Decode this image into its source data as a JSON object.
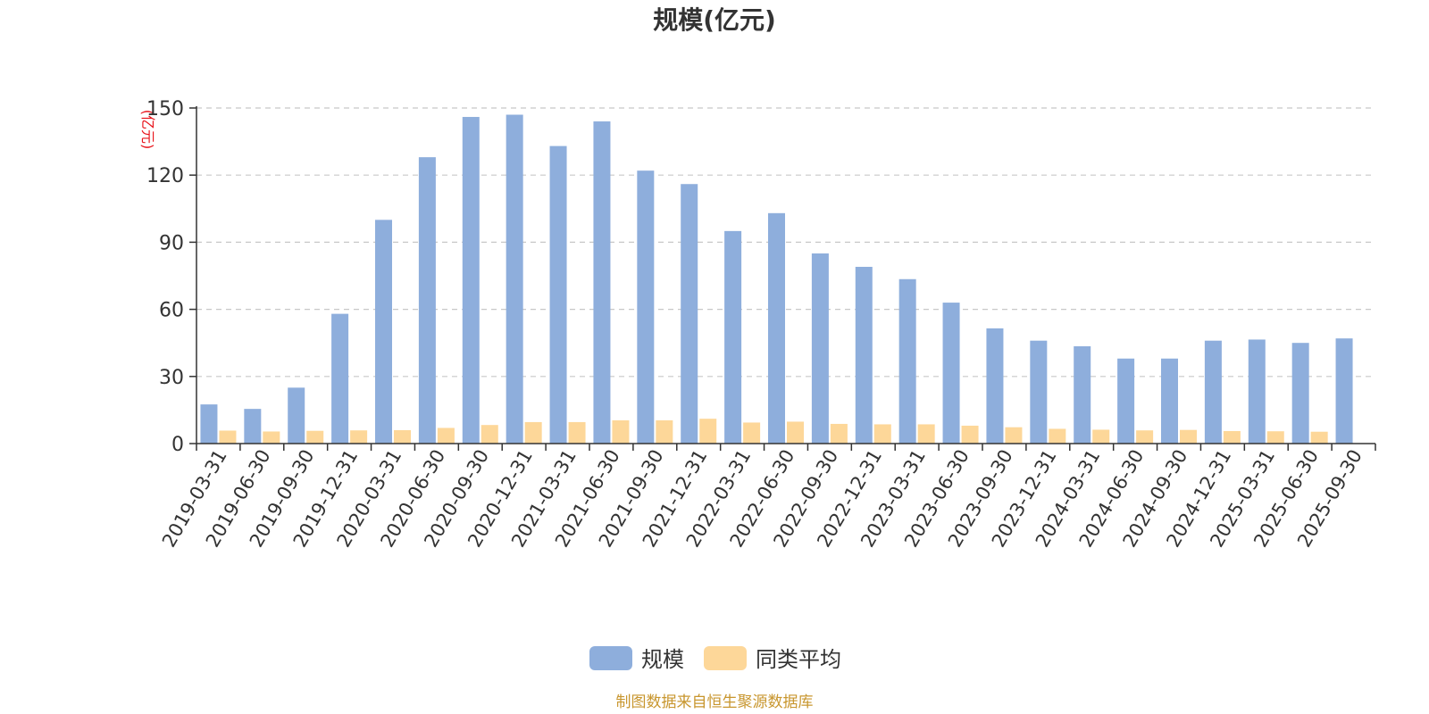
{
  "chart_data": {
    "type": "bar",
    "title": "规模(亿元)",
    "ylabel": "(亿元)",
    "ylim": [
      0,
      150
    ],
    "yticks": [
      0,
      30,
      60,
      90,
      120,
      150
    ],
    "grid": true,
    "legend_position": "bottom",
    "categories": [
      "2019-03-31",
      "2019-06-30",
      "2019-09-30",
      "2019-12-31",
      "2020-03-31",
      "2020-06-30",
      "2020-09-30",
      "2020-12-31",
      "2021-03-31",
      "2021-06-30",
      "2021-09-30",
      "2021-12-31",
      "2022-03-31",
      "2022-06-30",
      "2022-09-30",
      "2022-12-31",
      "2023-03-31",
      "2023-06-30",
      "2023-09-30",
      "2023-12-31",
      "2024-03-31",
      "2024-06-30",
      "2024-09-30",
      "2024-12-31",
      "2025-03-31",
      "2025-06-30",
      "2025-09-30"
    ],
    "series": [
      {
        "name": "规模",
        "color": "#8eaedc",
        "values": [
          17.5,
          15.5,
          25,
          58,
          100,
          128,
          146,
          147,
          133,
          144,
          122,
          116,
          95,
          103,
          85,
          79,
          73.5,
          63,
          51.5,
          46,
          43.5,
          38,
          38,
          46,
          46.5,
          45,
          47
        ]
      },
      {
        "name": "同类平均",
        "color": "#fdd799",
        "values": [
          5.8,
          5.4,
          5.7,
          5.9,
          6,
          7,
          8.3,
          9.6,
          9.6,
          10.4,
          10.4,
          11.1,
          9.4,
          9.8,
          8.8,
          8.6,
          8.6,
          8,
          7.3,
          6.6,
          6.2,
          5.9,
          6.1,
          5.6,
          5.5,
          5.3,
          null
        ]
      }
    ]
  },
  "footer": {
    "source": "制图数据来自恒生聚源数据库"
  }
}
